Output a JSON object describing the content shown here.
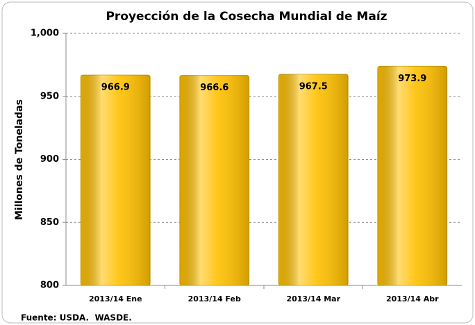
{
  "chart_data": {
    "type": "bar",
    "title": "Proyección de la Cosecha Mundial de Maíz",
    "y_label": "Millones de Toneladas",
    "categories": [
      "2013/14 Ene",
      "2013/14 Feb",
      "2013/14 Mar",
      "2013/14 Abr"
    ],
    "values": [
      966.9,
      966.6,
      967.5,
      973.9
    ],
    "color": "#ffc000",
    "ylim": [
      800,
      1000
    ],
    "yticks": [
      800,
      850,
      900,
      950,
      {
        "value": 1000,
        "label": "1,000"
      }
    ],
    "grid": true,
    "source": "Fuente: USDA.  WASDE."
  }
}
